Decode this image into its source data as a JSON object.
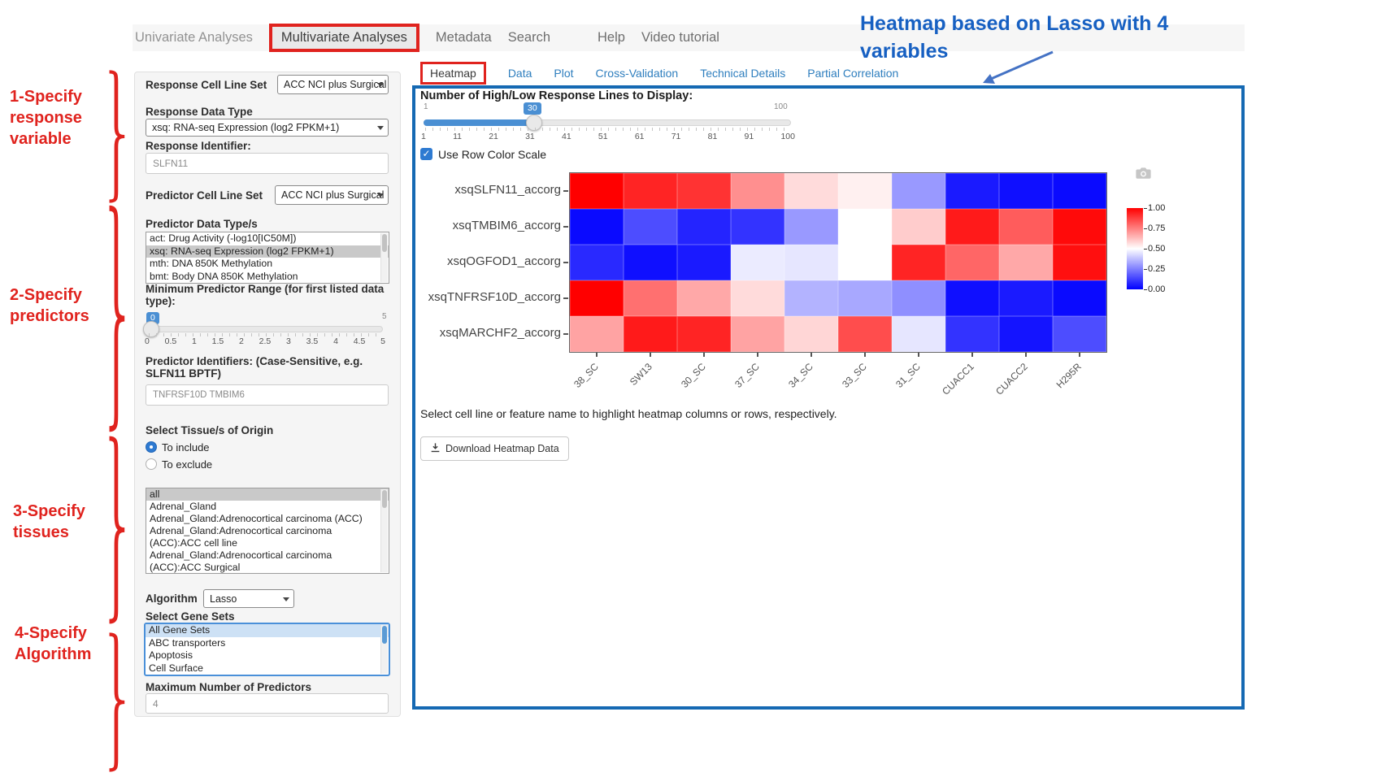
{
  "nav": {
    "items": [
      "Univariate Analyses",
      "Multivariate Analyses",
      "Metadata",
      "Search",
      "Help",
      "Video tutorial"
    ],
    "active": "Multivariate Analyses"
  },
  "annotations": {
    "steps": [
      "1-Specify response variable",
      "2-Specify predictors",
      "3-Specify tissues",
      "4-Specify Algorithm"
    ],
    "heatmap_note": "Heatmap based on Lasso with 4 variables"
  },
  "sidebar": {
    "response_cell_line_set": {
      "label": "Response Cell Line Set",
      "value": "ACC NCI plus Surgical"
    },
    "response_data_type": {
      "label": "Response Data Type",
      "value": "xsq: RNA-seq Expression (log2 FPKM+1)"
    },
    "response_identifier": {
      "label": "Response Identifier:",
      "value": "SLFN11"
    },
    "predictor_cell_line_set": {
      "label": "Predictor Cell Line Set",
      "value": "ACC NCI plus Surgical"
    },
    "predictor_data_types": {
      "label": "Predictor Data Type/s",
      "options": [
        "act: Drug Activity (-log10[IC50M])",
        "xsq: RNA-seq Expression (log2 FPKM+1)",
        "mth: DNA 850K Methylation",
        "bmt: Body DNA 850K Methylation"
      ],
      "selected": "xsq: RNA-seq Expression (log2 FPKM+1)"
    },
    "min_predictor_range": {
      "label": "Minimum Predictor Range (for first listed data type):",
      "min": 0,
      "max": 5,
      "value": 0,
      "ticks": [
        "0",
        "0.5",
        "1",
        "1.5",
        "2",
        "2.5",
        "3",
        "3.5",
        "4",
        "4.5",
        "5"
      ]
    },
    "predictor_identifiers": {
      "label": "Predictor Identifiers: (Case-Sensitive, e.g. SLFN11 BPTF)",
      "value": "TNFRSF10D TMBIM6"
    },
    "tissue": {
      "label": "Select Tissue/s of Origin",
      "radios": [
        "To include",
        "To exclude"
      ],
      "radio_selected": "To include",
      "options": [
        "all",
        "Adrenal_Gland",
        "Adrenal_Gland:Adrenocortical carcinoma (ACC)",
        "Adrenal_Gland:Adrenocortical carcinoma (ACC):ACC cell line",
        "Adrenal_Gland:Adrenocortical carcinoma (ACC):ACC Surgical"
      ],
      "selected": "all"
    },
    "algorithm": {
      "label": "Algorithm",
      "value": "Lasso"
    },
    "gene_sets": {
      "label": "Select Gene Sets",
      "options": [
        "All Gene Sets",
        "ABC transporters",
        "Apoptosis",
        "Cell Surface"
      ],
      "selected": "All Gene Sets"
    },
    "max_predictors": {
      "label": "Maximum Number of Predictors",
      "value": "4"
    }
  },
  "tabs": {
    "items": [
      "Heatmap",
      "Data",
      "Plot",
      "Cross-Validation",
      "Technical Details",
      "Partial Correlation"
    ],
    "active": "Heatmap"
  },
  "main": {
    "lines_slider": {
      "label": "Number of High/Low Response Lines to Display:",
      "min": 1,
      "max": 100,
      "value": 30,
      "ticks": [
        "1",
        "11",
        "21",
        "31",
        "41",
        "51",
        "61",
        "71",
        "81",
        "91",
        "100"
      ]
    },
    "row_color_scale": {
      "label": "Use Row Color Scale",
      "checked": true
    },
    "hint": "Select cell line or feature name to highlight heatmap columns or rows, respectively.",
    "download_button": "Download Heatmap Data"
  },
  "colors": {
    "annotation_red": "#e0231e",
    "annotation_blue": "#1760c2",
    "panel_border_blue": "#1569b3",
    "link_blue": "#2e7ebe",
    "slider_blue": "#4a8fd3"
  },
  "chart_data": {
    "type": "heatmap",
    "rows": [
      "xsqSLFN11_accorg",
      "xsqTMBIM6_accorg",
      "xsqOGFOD1_accorg",
      "xsqTNFRSF10D_accorg",
      "xsqMARCHF2_accorg"
    ],
    "columns": [
      "38_SC",
      "SW13",
      "30_SC",
      "37_SC",
      "34_SC",
      "33_SC",
      "31_SC",
      "CUACC1",
      "CUACC2",
      "H295R"
    ],
    "values": [
      [
        1.0,
        0.93,
        0.9,
        0.72,
        0.57,
        0.53,
        0.3,
        0.05,
        0.03,
        0.02
      ],
      [
        0.02,
        0.15,
        0.07,
        0.1,
        0.3,
        0.5,
        0.6,
        0.95,
        0.82,
        0.98
      ],
      [
        0.08,
        0.03,
        0.05,
        0.46,
        0.45,
        0.5,
        0.93,
        0.8,
        0.67,
        0.97
      ],
      [
        1.0,
        0.78,
        0.67,
        0.57,
        0.35,
        0.33,
        0.28,
        0.03,
        0.05,
        0.02
      ],
      [
        0.68,
        0.95,
        0.93,
        0.68,
        0.58,
        0.85,
        0.45,
        0.1,
        0.04,
        0.15
      ]
    ],
    "vmin": 0,
    "vmax": 1,
    "colormap": "blue-white-red",
    "colorbar_ticks": [
      "1.00",
      "0.75",
      "0.50",
      "0.25",
      "0.00"
    ],
    "legend_position": "right",
    "xlabel": "",
    "ylabel": "",
    "title": ""
  }
}
